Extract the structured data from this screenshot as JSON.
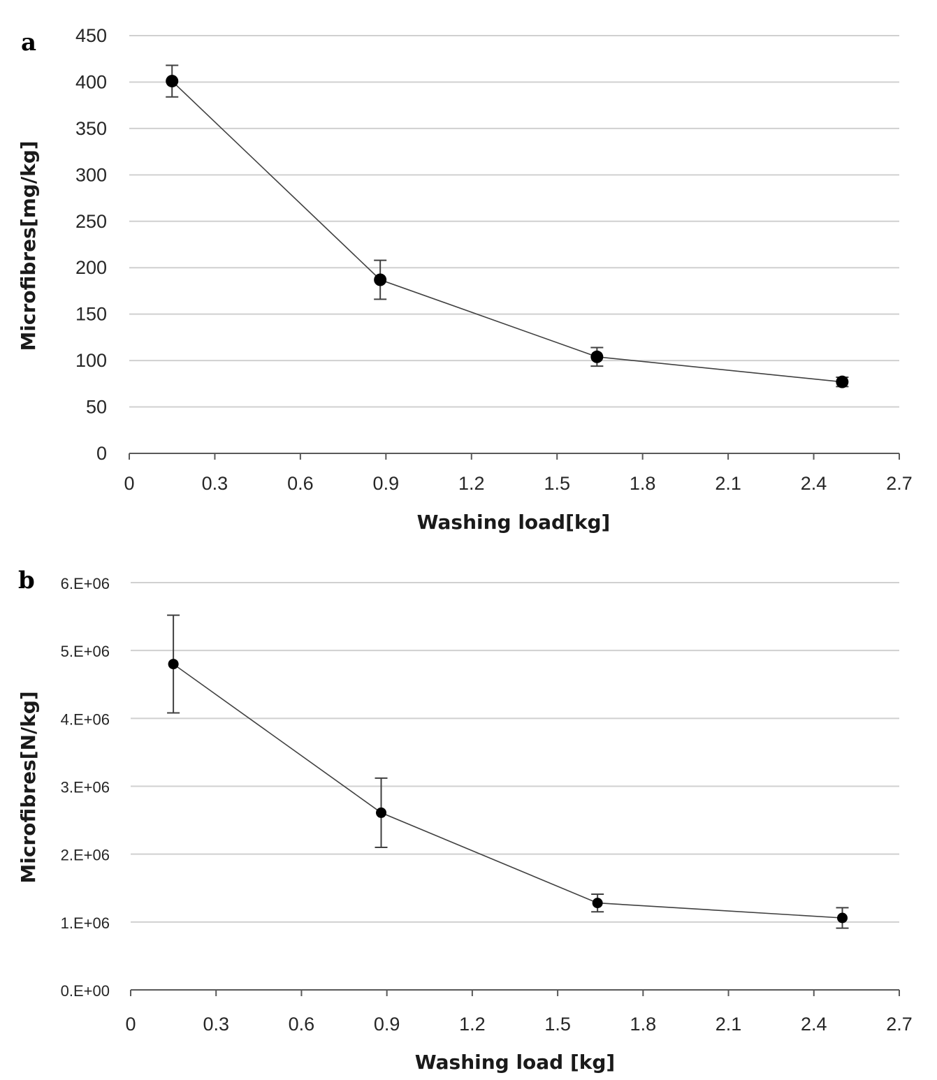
{
  "chart_data": [
    {
      "type": "scatter",
      "panel_label": "a",
      "xlabel": "Washing load[kg]",
      "ylabel": "Microfibres[mg/kg]",
      "xlim": [
        0,
        2.7
      ],
      "ylim": [
        0,
        450
      ],
      "x_ticks": [
        "0",
        "0.3",
        "0.6",
        "0.9",
        "1.2",
        "1.5",
        "1.8",
        "2.1",
        "2.4",
        "2.7"
      ],
      "y_ticks": [
        "0",
        "50",
        "100",
        "150",
        "200",
        "250",
        "300",
        "350",
        "400",
        "450"
      ],
      "grid": true,
      "series": [
        {
          "x": [
            0.15,
            0.88,
            1.64,
            2.5
          ],
          "y": [
            401,
            187,
            104,
            77
          ],
          "error": [
            17,
            21,
            10,
            5
          ]
        }
      ]
    },
    {
      "type": "scatter",
      "panel_label": "b",
      "xlabel": "Washing load [kg]",
      "ylabel": "Microfibres[N/kg]",
      "xlim": [
        0,
        2.7
      ],
      "ylim": [
        0,
        6000000
      ],
      "x_ticks": [
        "0",
        "0.3",
        "0.6",
        "0.9",
        "1.2",
        "1.5",
        "1.8",
        "2.1",
        "2.4",
        "2.7"
      ],
      "y_ticks": [
        "0.E+00",
        "1.E+06",
        "2.E+06",
        "3.E+06",
        "4.E+06",
        "5.E+06",
        "6.E+06"
      ],
      "grid": true,
      "series": [
        {
          "x": [
            0.15,
            0.88,
            1.64,
            2.5
          ],
          "y": [
            4800000,
            2610000,
            1280000,
            1060000
          ],
          "error": [
            720000,
            510000,
            130000,
            150000
          ]
        }
      ]
    }
  ]
}
